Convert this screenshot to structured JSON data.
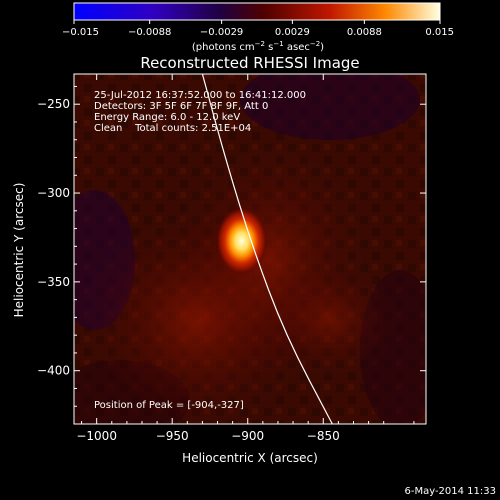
{
  "chart_data": {
    "type": "heatmap",
    "title": "Reconstructed RHESSI Image",
    "xlabel": "Heliocentric X (arcsec)",
    "ylabel": "Heliocentric Y (arcsec)",
    "xlim": [
      -1015,
      -782
    ],
    "ylim": [
      -430,
      -233
    ],
    "x_ticks": [
      -1000,
      -950,
      -900,
      -850
    ],
    "y_ticks": [
      -250,
      -300,
      -350,
      -400
    ],
    "x_tick_labels": [
      "−1000",
      "−950",
      "−900",
      "−850"
    ],
    "y_tick_labels": [
      "−250",
      "−300",
      "−350",
      "−400"
    ],
    "colorbar": {
      "range": [
        -0.015,
        0.015
      ],
      "ticks": [
        -0.015,
        -0.0088,
        -0.0029,
        0.0029,
        0.0088,
        0.015
      ],
      "tick_labels": [
        "−0.015",
        "−0.0088",
        "−0.0029",
        "0.0029",
        "0.0088",
        "0.015"
      ],
      "colors": [
        "#0000ff",
        "#4000b0",
        "#200040",
        "#500000",
        "#d02000",
        "#ff8800",
        "#ffffe0"
      ]
    },
    "annotations": [
      "25-Jul-2012 16:37:52.000 to 16:41:12.000",
      "Detectors: 3F 5F 6F 7F 8F 9F, Att 0",
      "Energy Range: 6.0 - 12.0 keV",
      "Clean    Total counts: 2.51E+04"
    ],
    "peak_label": "Position of Peak = [-904,-327]",
    "peak": {
      "x": -904,
      "y": -327
    },
    "limb_curve": [
      [
        -930,
        -233
      ],
      [
        -915,
        -280
      ],
      [
        -897,
        -330
      ],
      [
        -875,
        -380
      ],
      [
        -844,
        -430
      ]
    ],
    "grid": false
  },
  "footer": {
    "date": "6-May-2014 11:33"
  }
}
